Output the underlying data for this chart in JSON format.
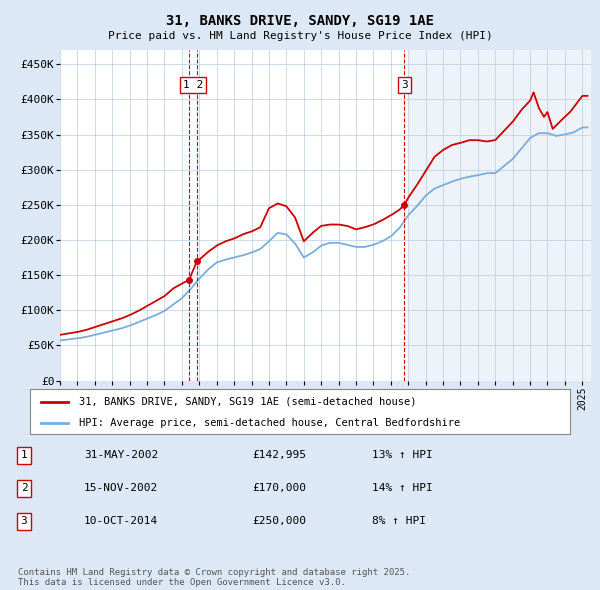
{
  "title": "31, BANKS DRIVE, SANDY, SG19 1AE",
  "subtitle": "Price paid vs. HM Land Registry's House Price Index (HPI)",
  "ylabel_ticks": [
    "£0",
    "£50K",
    "£100K",
    "£150K",
    "£200K",
    "£250K",
    "£300K",
    "£350K",
    "£400K",
    "£450K"
  ],
  "ytick_values": [
    0,
    50000,
    100000,
    150000,
    200000,
    250000,
    300000,
    350000,
    400000,
    450000
  ],
  "ylim": [
    0,
    470000
  ],
  "xlim_start": 1995.0,
  "xlim_end": 2025.5,
  "red_line_color": "#cc0000",
  "blue_line_color": "#7aaddb",
  "background_color": "#dce8f5",
  "plot_bg_color": "#ffffff",
  "plot_bg_right_color": "#dce8f5",
  "grid_color": "#bbccdd",
  "marker_color": "#cc0000",
  "transactions": [
    {
      "id": 1,
      "date_num": 2002.41,
      "price": 142995
    },
    {
      "id": 2,
      "date_num": 2002.87,
      "price": 170000
    },
    {
      "id": 3,
      "date_num": 2014.78,
      "price": 250000
    }
  ],
  "transaction_line_color": "#cc0000",
  "legend_entries": [
    "31, BANKS DRIVE, SANDY, SG19 1AE (semi-detached house)",
    "HPI: Average price, semi-detached house, Central Bedfordshire"
  ],
  "table_rows": [
    [
      "1",
      "31-MAY-2002",
      "£142,995",
      "13% ↑ HPI"
    ],
    [
      "2",
      "15-NOV-2002",
      "£170,000",
      "14% ↑ HPI"
    ],
    [
      "3",
      "10-OCT-2014",
      "£250,000",
      "8% ↑ HPI"
    ]
  ],
  "footer_text": "Contains HM Land Registry data © Crown copyright and database right 2025.\nThis data is licensed under the Open Government Licence v3.0.",
  "xtick_years": [
    1995,
    1996,
    1997,
    1998,
    1999,
    2000,
    2001,
    2002,
    2003,
    2004,
    2005,
    2006,
    2007,
    2008,
    2009,
    2010,
    2011,
    2012,
    2013,
    2014,
    2015,
    2016,
    2017,
    2018,
    2019,
    2020,
    2021,
    2022,
    2023,
    2024,
    2025
  ],
  "hpi_anchors": [
    [
      1995.0,
      57000
    ],
    [
      1995.5,
      58500
    ],
    [
      1996.0,
      60000
    ],
    [
      1996.5,
      62000
    ],
    [
      1997.0,
      65000
    ],
    [
      1997.5,
      68000
    ],
    [
      1998.0,
      71000
    ],
    [
      1998.5,
      74000
    ],
    [
      1999.0,
      78000
    ],
    [
      1999.5,
      83000
    ],
    [
      2000.0,
      88000
    ],
    [
      2000.5,
      93000
    ],
    [
      2001.0,
      99000
    ],
    [
      2001.5,
      108000
    ],
    [
      2002.0,
      117000
    ],
    [
      2002.5,
      130000
    ],
    [
      2003.0,
      145000
    ],
    [
      2003.5,
      158000
    ],
    [
      2004.0,
      168000
    ],
    [
      2004.5,
      172000
    ],
    [
      2005.0,
      175000
    ],
    [
      2005.5,
      178000
    ],
    [
      2006.0,
      182000
    ],
    [
      2006.5,
      187000
    ],
    [
      2007.0,
      198000
    ],
    [
      2007.5,
      210000
    ],
    [
      2008.0,
      208000
    ],
    [
      2008.5,
      195000
    ],
    [
      2009.0,
      175000
    ],
    [
      2009.5,
      182000
    ],
    [
      2010.0,
      192000
    ],
    [
      2010.5,
      196000
    ],
    [
      2011.0,
      196000
    ],
    [
      2011.5,
      193000
    ],
    [
      2012.0,
      190000
    ],
    [
      2012.5,
      190000
    ],
    [
      2013.0,
      193000
    ],
    [
      2013.5,
      198000
    ],
    [
      2014.0,
      205000
    ],
    [
      2014.5,
      217000
    ],
    [
      2015.0,
      235000
    ],
    [
      2015.5,
      248000
    ],
    [
      2016.0,
      263000
    ],
    [
      2016.5,
      273000
    ],
    [
      2017.0,
      278000
    ],
    [
      2017.5,
      283000
    ],
    [
      2018.0,
      287000
    ],
    [
      2018.5,
      290000
    ],
    [
      2019.0,
      292000
    ],
    [
      2019.5,
      295000
    ],
    [
      2020.0,
      295000
    ],
    [
      2020.5,
      305000
    ],
    [
      2021.0,
      315000
    ],
    [
      2021.5,
      330000
    ],
    [
      2022.0,
      345000
    ],
    [
      2022.5,
      352000
    ],
    [
      2023.0,
      352000
    ],
    [
      2023.5,
      348000
    ],
    [
      2024.0,
      350000
    ],
    [
      2024.5,
      353000
    ],
    [
      2025.0,
      360000
    ]
  ],
  "red_anchors": [
    [
      1995.0,
      65000
    ],
    [
      1995.5,
      67000
    ],
    [
      1996.0,
      69000
    ],
    [
      1996.5,
      72000
    ],
    [
      1997.0,
      76000
    ],
    [
      1997.5,
      80000
    ],
    [
      1998.0,
      84000
    ],
    [
      1998.5,
      88000
    ],
    [
      1999.0,
      93000
    ],
    [
      1999.5,
      99000
    ],
    [
      2000.0,
      106000
    ],
    [
      2000.5,
      113000
    ],
    [
      2001.0,
      120000
    ],
    [
      2001.5,
      131000
    ],
    [
      2002.0,
      138000
    ],
    [
      2002.41,
      142995
    ],
    [
      2002.87,
      170000
    ],
    [
      2003.0,
      172000
    ],
    [
      2003.5,
      183000
    ],
    [
      2004.0,
      192000
    ],
    [
      2004.5,
      198000
    ],
    [
      2005.0,
      202000
    ],
    [
      2005.5,
      208000
    ],
    [
      2006.0,
      212000
    ],
    [
      2006.5,
      218000
    ],
    [
      2007.0,
      245000
    ],
    [
      2007.5,
      252000
    ],
    [
      2008.0,
      248000
    ],
    [
      2008.5,
      232000
    ],
    [
      2009.0,
      198000
    ],
    [
      2009.5,
      210000
    ],
    [
      2010.0,
      220000
    ],
    [
      2010.5,
      222000
    ],
    [
      2011.0,
      222000
    ],
    [
      2011.5,
      220000
    ],
    [
      2012.0,
      215000
    ],
    [
      2012.5,
      218000
    ],
    [
      2013.0,
      222000
    ],
    [
      2013.5,
      228000
    ],
    [
      2014.0,
      235000
    ],
    [
      2014.5,
      243000
    ],
    [
      2014.78,
      250000
    ],
    [
      2015.0,
      260000
    ],
    [
      2015.5,
      278000
    ],
    [
      2016.0,
      298000
    ],
    [
      2016.5,
      318000
    ],
    [
      2017.0,
      328000
    ],
    [
      2017.5,
      335000
    ],
    [
      2018.0,
      338000
    ],
    [
      2018.5,
      342000
    ],
    [
      2019.0,
      342000
    ],
    [
      2019.5,
      340000
    ],
    [
      2020.0,
      342000
    ],
    [
      2020.5,
      355000
    ],
    [
      2021.0,
      368000
    ],
    [
      2021.5,
      385000
    ],
    [
      2022.0,
      398000
    ],
    [
      2022.2,
      410000
    ],
    [
      2022.5,
      388000
    ],
    [
      2022.8,
      375000
    ],
    [
      2023.0,
      382000
    ],
    [
      2023.3,
      358000
    ],
    [
      2023.7,
      368000
    ],
    [
      2024.0,
      375000
    ],
    [
      2024.3,
      382000
    ],
    [
      2024.7,
      395000
    ],
    [
      2025.0,
      405000
    ]
  ]
}
